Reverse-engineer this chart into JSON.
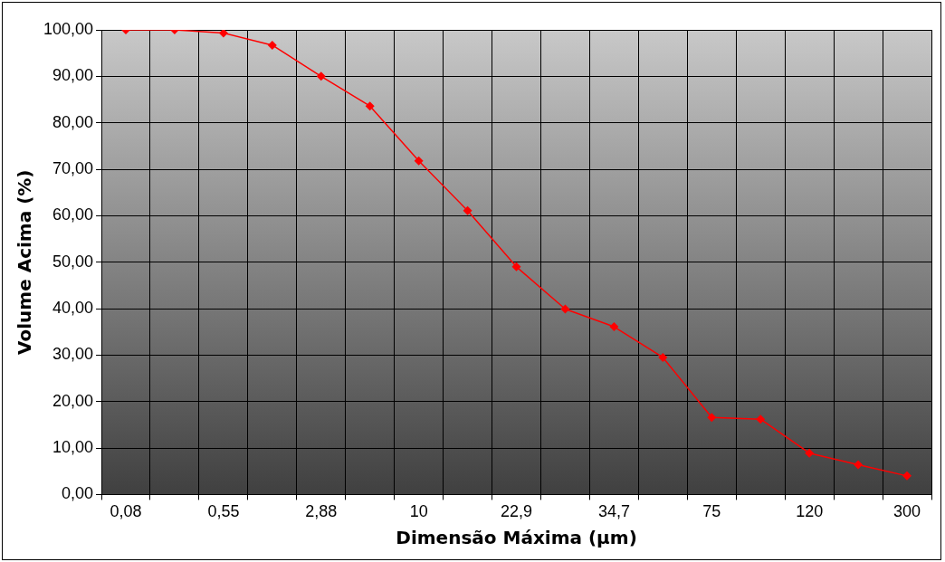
{
  "chart_data": {
    "type": "line",
    "xlabel": "Dimensão Máxima (µm)",
    "ylabel": "Volume Acima (%)",
    "categories": [
      "0,08",
      null,
      "0,55",
      null,
      "2,88",
      null,
      "10",
      null,
      "22,9",
      null,
      "34,7",
      null,
      "75",
      null,
      "120",
      null,
      "300"
    ],
    "series": [
      {
        "color": "#ff0000",
        "values": [
          100,
          100,
          99.3,
          96.7,
          90,
          83.6,
          71.8,
          61.1,
          49,
          39.9,
          36.1,
          29.5,
          16.6,
          16.2,
          8.9,
          6.4,
          4
        ]
      }
    ],
    "ylim": [
      0,
      100
    ],
    "yticks": [
      {
        "value": 0,
        "label": "0,00"
      },
      {
        "value": 10,
        "label": "10,00"
      },
      {
        "value": 20,
        "label": "20,00"
      },
      {
        "value": 30,
        "label": "30,00"
      },
      {
        "value": 40,
        "label": "40,00"
      },
      {
        "value": 50,
        "label": "50,00"
      },
      {
        "value": 60,
        "label": "60,00"
      },
      {
        "value": 70,
        "label": "70,00"
      },
      {
        "value": 80,
        "label": "80,00"
      },
      {
        "value": 90,
        "label": "90,00"
      },
      {
        "value": 100,
        "label": "100,00"
      }
    ],
    "grid": true,
    "marker": "diamond",
    "line_style": "solid",
    "legend": false
  }
}
